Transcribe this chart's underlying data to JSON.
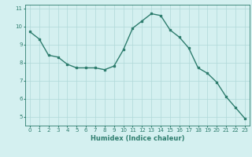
{
  "x": [
    0,
    1,
    2,
    3,
    4,
    5,
    6,
    7,
    8,
    9,
    10,
    11,
    12,
    13,
    14,
    15,
    16,
    17,
    18,
    19,
    20,
    21,
    22,
    23
  ],
  "y": [
    9.7,
    9.3,
    8.4,
    8.3,
    7.9,
    7.7,
    7.7,
    7.7,
    7.6,
    7.8,
    8.7,
    9.9,
    10.3,
    10.7,
    10.6,
    9.8,
    9.4,
    8.8,
    7.7,
    7.4,
    6.9,
    6.1,
    5.5,
    4.9
  ],
  "line_color": "#2e7d6e",
  "marker": "s",
  "markersize": 2,
  "linewidth": 1.0,
  "xlabel": "Humidex (Indice chaleur)",
  "xlabel_fontsize": 6,
  "bg_color": "#d4f0f0",
  "grid_color": "#b0d8d8",
  "ylim": [
    4.5,
    11.2
  ],
  "xlim": [
    -0.5,
    23.5
  ],
  "yticks": [
    5,
    6,
    7,
    8,
    9,
    10,
    11
  ],
  "xticks": [
    0,
    1,
    2,
    3,
    4,
    5,
    6,
    7,
    8,
    9,
    10,
    11,
    12,
    13,
    14,
    15,
    16,
    17,
    18,
    19,
    20,
    21,
    22,
    23
  ],
  "tick_fontsize": 5.0,
  "tick_color": "#2e7d6e",
  "spine_color": "#2e7d6e"
}
